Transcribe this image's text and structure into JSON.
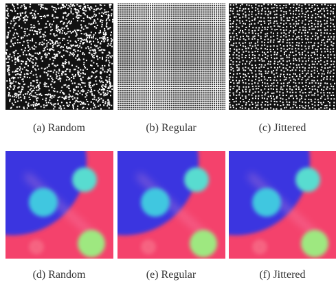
{
  "figure": {
    "captions": [
      "(a) Random",
      "(b) Regular",
      "(c) Jittered",
      "(d) Random",
      "(e) Regular",
      "(f) Jittered"
    ]
  }
}
